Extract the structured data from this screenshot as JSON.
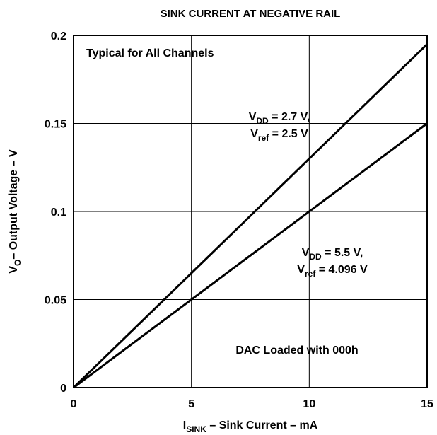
{
  "chart_data": {
    "type": "line",
    "title": "SINK CURRENT AT NEGATIVE RAIL",
    "xlabel": [
      "I",
      "SINK",
      " – Sink Current – mA"
    ],
    "ylabel": [
      "V",
      "O",
      "– Output Voltage – V"
    ],
    "x": [
      0,
      15
    ],
    "series": [
      {
        "color": "#000000",
        "values": [
          0,
          0.195
        ]
      },
      {
        "color": "#000000",
        "values": [
          0,
          0.15
        ]
      }
    ],
    "xlim": [
      0,
      15
    ],
    "xticks": [
      0,
      5,
      10,
      15
    ],
    "ylim": [
      0,
      0.2
    ],
    "yticks": [
      0,
      0.05,
      0.1,
      0.15,
      0.2
    ],
    "grid": true,
    "annotations": [
      {
        "lines": [
          [
            "Typical for All Channels"
          ]
        ]
      },
      {
        "lines": [
          [
            "V",
            "DD",
            " = 2.7 V,"
          ],
          [
            "V",
            "ref",
            " = 2.5 V"
          ]
        ]
      },
      {
        "lines": [
          [
            "V",
            "DD",
            " = 5.5 V,"
          ],
          [
            "V",
            "ref",
            " = 4.096 V"
          ]
        ]
      },
      {
        "lines": [
          [
            "DAC Loaded with 000h"
          ]
        ]
      }
    ]
  }
}
